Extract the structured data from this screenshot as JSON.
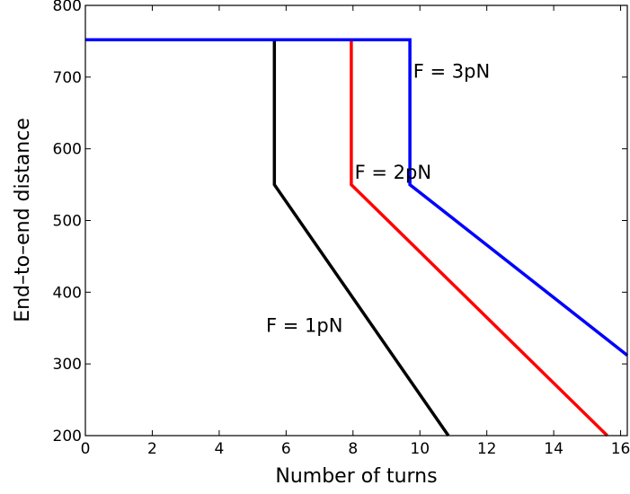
{
  "chart_data": {
    "type": "line",
    "xlabel": "Number of turns",
    "ylabel": "End–to–end distance",
    "xlim": [
      0,
      16.2
    ],
    "ylim": [
      200,
      800
    ],
    "xticks": [
      "0",
      "2",
      "4",
      "6",
      "8",
      "10",
      "12",
      "14",
      "16"
    ],
    "yticks": [
      "200",
      "300",
      "400",
      "500",
      "600",
      "700",
      "800"
    ],
    "grid": false,
    "series": [
      {
        "name": "F = 1pN",
        "color": "#000000",
        "x": [
          0,
          5.65,
          5.65,
          10.85
        ],
        "y": [
          752,
          752,
          550,
          200
        ]
      },
      {
        "name": "F = 2pN",
        "color": "#ff0000",
        "x": [
          0,
          7.95,
          7.95,
          15.6
        ],
        "y": [
          752,
          752,
          550,
          200
        ]
      },
      {
        "name": "F = 3pN",
        "color": "#0000ff",
        "x": [
          0,
          9.7,
          9.7,
          16.2
        ],
        "y": [
          752,
          752,
          550,
          312
        ]
      }
    ],
    "annotations": [
      {
        "text": "F = 3pN",
        "x": 9.8,
        "y": 709
      },
      {
        "text": "F = 2pN",
        "x": 8.05,
        "y": 568
      },
      {
        "text": "F = 1pN",
        "x": 5.4,
        "y": 355
      }
    ]
  }
}
